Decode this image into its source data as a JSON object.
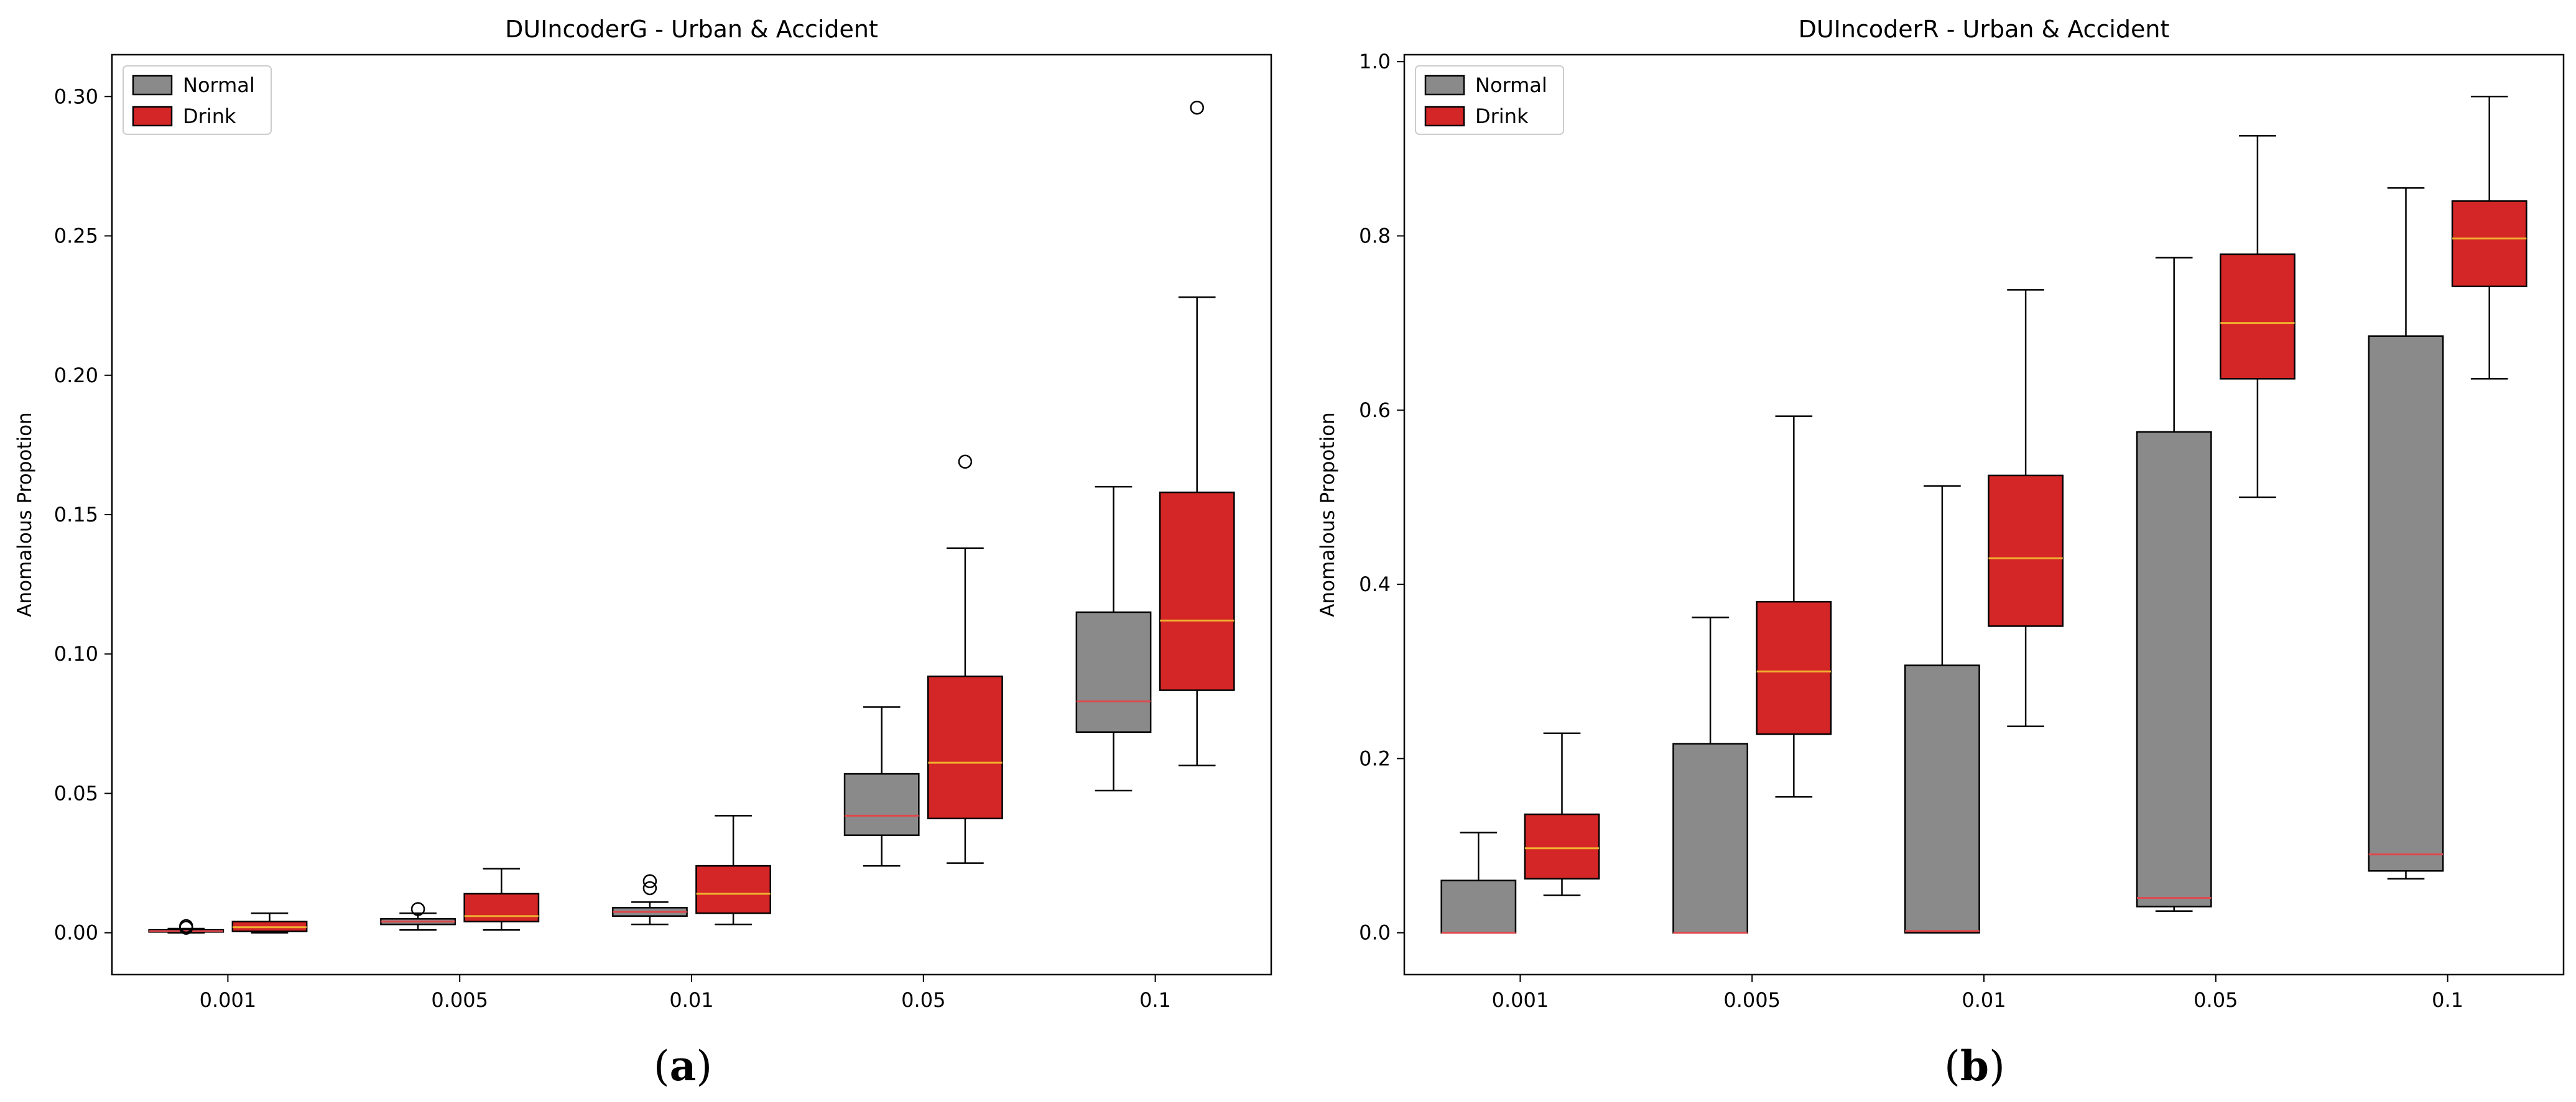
{
  "figure": {
    "captions": [
      {
        "paren_open": "(",
        "letter": "a",
        "paren_close": ")"
      },
      {
        "paren_open": "(",
        "letter": "b",
        "paren_close": ")"
      }
    ]
  },
  "colors": {
    "normal_fill": "#8a8a8a",
    "drink_fill": "#d42626",
    "normal_median": "#e0474c",
    "drink_median": "#f0b030",
    "outline": "#000000"
  },
  "chart_data": [
    {
      "type": "box",
      "title": "DUIncoderG - Urban & Accident",
      "xlabel": "",
      "ylabel": "Anomalous Propotion",
      "categories": [
        "0.001",
        "0.005",
        "0.01",
        "0.05",
        "0.1"
      ],
      "ylim": [
        -0.015,
        0.315
      ],
      "yticks": [
        0.0,
        0.05,
        0.1,
        0.15,
        0.2,
        0.25,
        0.3
      ],
      "ytick_labels": [
        "0.00",
        "0.05",
        "0.10",
        "0.15",
        "0.20",
        "0.25",
        "0.30"
      ],
      "legend": {
        "position": "top-left",
        "entries": [
          "Normal",
          "Drink"
        ]
      },
      "series": [
        {
          "name": "Normal",
          "boxes": [
            {
              "whislo": 0.0,
              "q1": 0.0003,
              "med": 0.0006,
              "q3": 0.001,
              "whishi": 0.0015,
              "fliers": [
                0.0018,
                0.0024
              ]
            },
            {
              "whislo": 0.001,
              "q1": 0.003,
              "med": 0.004,
              "q3": 0.005,
              "whishi": 0.007,
              "fliers": [
                0.0085
              ]
            },
            {
              "whislo": 0.003,
              "q1": 0.006,
              "med": 0.0075,
              "q3": 0.009,
              "whishi": 0.011,
              "fliers": [
                0.016,
                0.0185
              ]
            },
            {
              "whislo": 0.024,
              "q1": 0.035,
              "med": 0.042,
              "q3": 0.057,
              "whishi": 0.081,
              "fliers": []
            },
            {
              "whislo": 0.051,
              "q1": 0.072,
              "med": 0.083,
              "q3": 0.115,
              "whishi": 0.16,
              "fliers": []
            }
          ]
        },
        {
          "name": "Drink",
          "boxes": [
            {
              "whislo": 0.0,
              "q1": 0.0005,
              "med": 0.002,
              "q3": 0.004,
              "whishi": 0.007,
              "fliers": []
            },
            {
              "whislo": 0.001,
              "q1": 0.004,
              "med": 0.006,
              "q3": 0.014,
              "whishi": 0.023,
              "fliers": []
            },
            {
              "whislo": 0.003,
              "q1": 0.007,
              "med": 0.014,
              "q3": 0.024,
              "whishi": 0.042,
              "fliers": []
            },
            {
              "whislo": 0.025,
              "q1": 0.041,
              "med": 0.061,
              "q3": 0.092,
              "whishi": 0.138,
              "fliers": [
                0.169
              ]
            },
            {
              "whislo": 0.06,
              "q1": 0.087,
              "med": 0.112,
              "q3": 0.158,
              "whishi": 0.228,
              "fliers": [
                0.296
              ]
            }
          ]
        }
      ]
    },
    {
      "type": "box",
      "title": "DUIncoderR - Urban & Accident",
      "xlabel": "",
      "ylabel": "Anomalous Propotion",
      "categories": [
        "0.001",
        "0.005",
        "0.01",
        "0.05",
        "0.1"
      ],
      "ylim": [
        -0.048,
        1.008
      ],
      "yticks": [
        0.0,
        0.2,
        0.4,
        0.6,
        0.8,
        1.0
      ],
      "ytick_labels": [
        "0.0",
        "0.2",
        "0.4",
        "0.6",
        "0.8",
        "1.0"
      ],
      "legend": {
        "position": "top-left",
        "entries": [
          "Normal",
          "Drink"
        ]
      },
      "series": [
        {
          "name": "Normal",
          "boxes": [
            {
              "whislo": 0.0,
              "q1": 0.0,
              "med": 0.0,
              "q3": 0.06,
              "whishi": 0.115,
              "fliers": []
            },
            {
              "whislo": 0.0,
              "q1": 0.0,
              "med": 0.0,
              "q3": 0.217,
              "whishi": 0.362,
              "fliers": []
            },
            {
              "whislo": 0.0,
              "q1": 0.0,
              "med": 0.002,
              "q3": 0.307,
              "whishi": 0.513,
              "fliers": []
            },
            {
              "whislo": 0.025,
              "q1": 0.03,
              "med": 0.04,
              "q3": 0.575,
              "whishi": 0.775,
              "fliers": []
            },
            {
              "whislo": 0.062,
              "q1": 0.071,
              "med": 0.09,
              "q3": 0.685,
              "whishi": 0.855,
              "fliers": []
            }
          ]
        },
        {
          "name": "Drink",
          "boxes": [
            {
              "whislo": 0.043,
              "q1": 0.062,
              "med": 0.097,
              "q3": 0.136,
              "whishi": 0.229,
              "fliers": []
            },
            {
              "whislo": 0.156,
              "q1": 0.228,
              "med": 0.3,
              "q3": 0.38,
              "whishi": 0.593,
              "fliers": []
            },
            {
              "whislo": 0.237,
              "q1": 0.352,
              "med": 0.43,
              "q3": 0.525,
              "whishi": 0.738,
              "fliers": []
            },
            {
              "whislo": 0.5,
              "q1": 0.636,
              "med": 0.7,
              "q3": 0.779,
              "whishi": 0.915,
              "fliers": []
            },
            {
              "whislo": 0.636,
              "q1": 0.742,
              "med": 0.797,
              "q3": 0.84,
              "whishi": 0.96,
              "fliers": []
            }
          ]
        }
      ]
    }
  ]
}
